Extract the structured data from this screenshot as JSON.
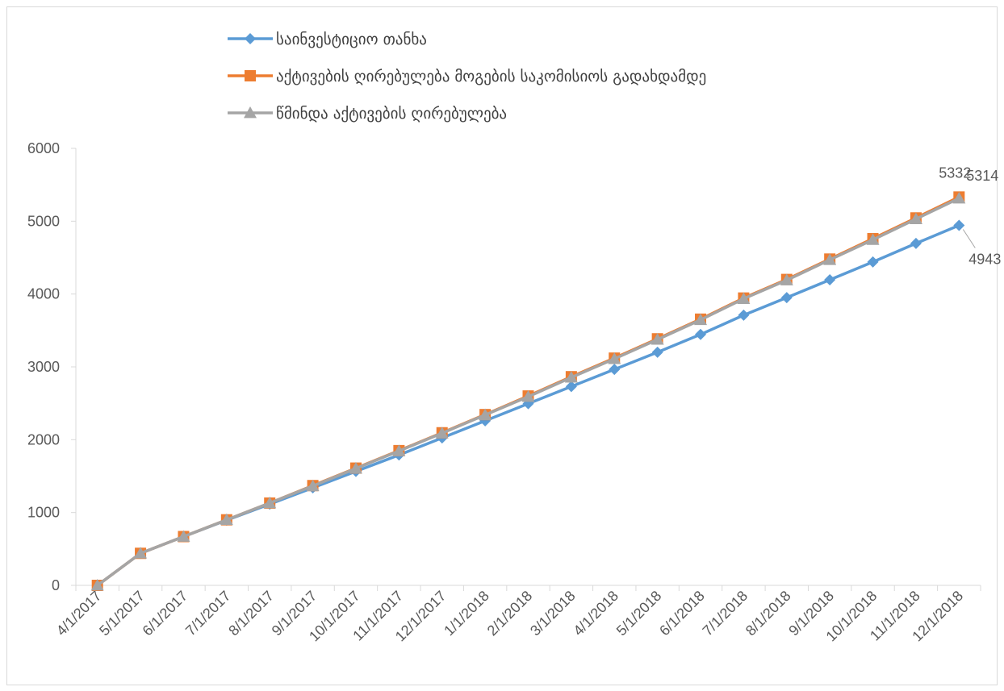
{
  "chart_data": {
    "type": "line",
    "title": "",
    "xlabel": "",
    "ylabel": "",
    "ylim": [
      0,
      6000
    ],
    "yticks": [
      0,
      1000,
      2000,
      3000,
      4000,
      5000,
      6000
    ],
    "grid": false,
    "legend_position": "top-left",
    "x": [
      "4/1/2017",
      "5/1/2017",
      "6/1/2017",
      "7/1/2017",
      "8/1/2017",
      "9/1/2017",
      "10/1/2017",
      "11/1/2017",
      "12/1/2017",
      "1/1/2018",
      "2/1/2018",
      "3/1/2018",
      "4/1/2018",
      "5/1/2018",
      "6/1/2018",
      "7/1/2018",
      "8/1/2018",
      "9/1/2018",
      "10/1/2018",
      "11/1/2018",
      "12/1/2018"
    ],
    "series": [
      {
        "name": "საინვესტიციო თანხა",
        "color": "#5b9bd5",
        "marker": "diamond",
        "values": [
          0,
          440,
          670,
          895,
          1115,
          1340,
          1565,
          1790,
          2025,
          2260,
          2495,
          2730,
          2965,
          3200,
          3445,
          3710,
          3950,
          4195,
          4440,
          4695,
          4943
        ]
      },
      {
        "name": "აქტივების ღირებულება მოგების საკომისიოს გადახდამდე",
        "color": "#ed7d31",
        "marker": "square",
        "values": [
          0,
          440,
          670,
          900,
          1130,
          1370,
          1610,
          1850,
          2095,
          2345,
          2600,
          2865,
          3120,
          3385,
          3655,
          3945,
          4200,
          4480,
          4760,
          5045,
          5332
        ]
      },
      {
        "name": "წმინდა აქტივების ღირებულება",
        "color": "#a5a5a5",
        "marker": "triangle",
        "values": [
          0,
          440,
          670,
          900,
          1130,
          1365,
          1605,
          1845,
          2090,
          2340,
          2590,
          2855,
          3110,
          3375,
          3645,
          3935,
          4190,
          4470,
          4745,
          5030,
          5314
        ]
      }
    ],
    "data_labels": [
      {
        "series": 1,
        "index": 20,
        "text": "5332"
      },
      {
        "series": 2,
        "index": 20,
        "text": "5314"
      },
      {
        "series": 0,
        "index": 20,
        "text": "4943"
      }
    ]
  }
}
